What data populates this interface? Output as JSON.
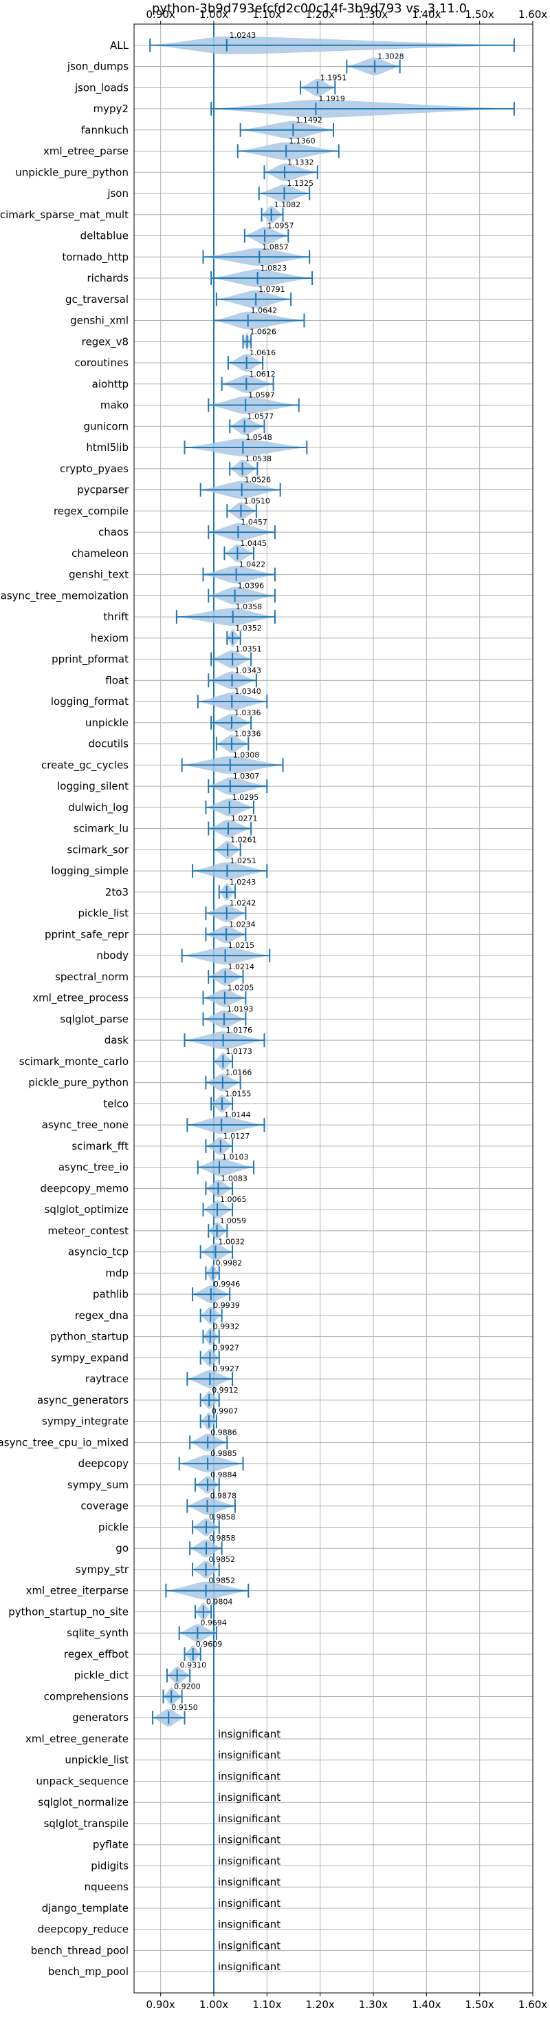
{
  "chart_data": {
    "type": "violin",
    "title": "python-3b9d793efcfd2c00c14f-3b9d793 vs. 3.11.0",
    "xlim": [
      0.85,
      1.6
    ],
    "xticks": [
      0.9,
      1.0,
      1.1,
      1.2,
      1.3,
      1.4,
      1.5,
      1.6
    ],
    "xtick_labels": [
      "0.90x",
      "1.00x",
      "1.10x",
      "1.20x",
      "1.30x",
      "1.40x",
      "1.50x",
      "1.60x"
    ],
    "reference_line": 1.0,
    "grid": true,
    "colors": {
      "line": "#1f77b4",
      "violin": "#aac8e4",
      "grid": "#b0b0b0"
    },
    "insignificant_label": "insignificant",
    "benchmarks": [
      {
        "name": "ALL",
        "mean": 1.0243,
        "min": 0.88,
        "max": 1.565,
        "label": "1.0243"
      },
      {
        "name": "json_dumps",
        "mean": 1.3028,
        "min": 1.25,
        "max": 1.35,
        "label": "1.3028"
      },
      {
        "name": "json_loads",
        "mean": 1.1951,
        "min": 1.163,
        "max": 1.228,
        "label": "1.1951"
      },
      {
        "name": "mypy2",
        "mean": 1.1919,
        "min": 0.995,
        "max": 1.565,
        "label": "1.1919"
      },
      {
        "name": "fannkuch",
        "mean": 1.1492,
        "min": 1.05,
        "max": 1.225,
        "label": "1.1492"
      },
      {
        "name": "xml_etree_parse",
        "mean": 1.136,
        "min": 1.045,
        "max": 1.235,
        "label": "1.1360"
      },
      {
        "name": "unpickle_pure_python",
        "mean": 1.1332,
        "min": 1.095,
        "max": 1.195,
        "label": "1.1332"
      },
      {
        "name": "json",
        "mean": 1.1325,
        "min": 1.085,
        "max": 1.18,
        "label": "1.1325"
      },
      {
        "name": "scimark_sparse_mat_mult",
        "mean": 1.1082,
        "min": 1.09,
        "max": 1.13,
        "label": "1.1082"
      },
      {
        "name": "deltablue",
        "mean": 1.0957,
        "min": 1.058,
        "max": 1.14,
        "label": "1.0957"
      },
      {
        "name": "tornado_http",
        "mean": 1.0857,
        "min": 0.98,
        "max": 1.18,
        "label": "1.0857"
      },
      {
        "name": "richards",
        "mean": 1.0823,
        "min": 0.995,
        "max": 1.185,
        "label": "1.0823"
      },
      {
        "name": "gc_traversal",
        "mean": 1.0791,
        "min": 1.005,
        "max": 1.145,
        "label": "1.0791"
      },
      {
        "name": "genshi_xml",
        "mean": 1.0642,
        "min": 1.0,
        "max": 1.17,
        "label": "1.0642"
      },
      {
        "name": "regex_v8",
        "mean": 1.0626,
        "min": 1.055,
        "max": 1.07,
        "label": "1.0626"
      },
      {
        "name": "coroutines",
        "mean": 1.0616,
        "min": 1.027,
        "max": 1.092,
        "label": "1.0616"
      },
      {
        "name": "aiohttp",
        "mean": 1.0612,
        "min": 1.015,
        "max": 1.112,
        "label": "1.0612"
      },
      {
        "name": "mako",
        "mean": 1.0597,
        "min": 0.99,
        "max": 1.16,
        "label": "1.0597"
      },
      {
        "name": "gunicorn",
        "mean": 1.0577,
        "min": 1.03,
        "max": 1.095,
        "label": "1.0577"
      },
      {
        "name": "html5lib",
        "mean": 1.0548,
        "min": 0.945,
        "max": 1.175,
        "label": "1.0548"
      },
      {
        "name": "crypto_pyaes",
        "mean": 1.0538,
        "min": 1.03,
        "max": 1.082,
        "label": "1.0538"
      },
      {
        "name": "pycparser",
        "mean": 1.0526,
        "min": 0.975,
        "max": 1.125,
        "label": "1.0526"
      },
      {
        "name": "regex_compile",
        "mean": 1.051,
        "min": 1.025,
        "max": 1.08,
        "label": "1.0510"
      },
      {
        "name": "chaos",
        "mean": 1.0457,
        "min": 0.99,
        "max": 1.115,
        "label": "1.0457"
      },
      {
        "name": "chameleon",
        "mean": 1.0445,
        "min": 1.02,
        "max": 1.075,
        "label": "1.0445"
      },
      {
        "name": "genshi_text",
        "mean": 1.0422,
        "min": 0.98,
        "max": 1.115,
        "label": "1.0422"
      },
      {
        "name": "async_tree_memoization",
        "mean": 1.0396,
        "min": 0.99,
        "max": 1.115,
        "label": "1.0396"
      },
      {
        "name": "thrift",
        "mean": 1.0358,
        "min": 0.93,
        "max": 1.115,
        "label": "1.0358"
      },
      {
        "name": "hexiom",
        "mean": 1.0352,
        "min": 1.025,
        "max": 1.05,
        "label": "1.0352"
      },
      {
        "name": "pprint_pformat",
        "mean": 1.0351,
        "min": 0.995,
        "max": 1.07,
        "label": "1.0351"
      },
      {
        "name": "float",
        "mean": 1.0343,
        "min": 0.99,
        "max": 1.08,
        "label": "1.0343"
      },
      {
        "name": "logging_format",
        "mean": 1.034,
        "min": 0.97,
        "max": 1.1,
        "label": "1.0340"
      },
      {
        "name": "unpickle",
        "mean": 1.0336,
        "min": 0.995,
        "max": 1.07,
        "label": "1.0336"
      },
      {
        "name": "docutils",
        "mean": 1.0336,
        "min": 1.005,
        "max": 1.065,
        "label": "1.0336"
      },
      {
        "name": "create_gc_cycles",
        "mean": 1.0308,
        "min": 0.94,
        "max": 1.13,
        "label": "1.0308"
      },
      {
        "name": "logging_silent",
        "mean": 1.0307,
        "min": 0.99,
        "max": 1.1,
        "label": "1.0307"
      },
      {
        "name": "dulwich_log",
        "mean": 1.0295,
        "min": 0.985,
        "max": 1.075,
        "label": "1.0295"
      },
      {
        "name": "scimark_lu",
        "mean": 1.0271,
        "min": 0.99,
        "max": 1.07,
        "label": "1.0271"
      },
      {
        "name": "scimark_sor",
        "mean": 1.0261,
        "min": 1.0,
        "max": 1.05,
        "label": "1.0261"
      },
      {
        "name": "logging_simple",
        "mean": 1.0251,
        "min": 0.96,
        "max": 1.1,
        "label": "1.0251"
      },
      {
        "name": "2to3",
        "mean": 1.0243,
        "min": 1.01,
        "max": 1.04,
        "label": "1.0243"
      },
      {
        "name": "pickle_list",
        "mean": 1.0242,
        "min": 0.985,
        "max": 1.06,
        "label": "1.0242"
      },
      {
        "name": "pprint_safe_repr",
        "mean": 1.0234,
        "min": 0.985,
        "max": 1.06,
        "label": "1.0234"
      },
      {
        "name": "nbody",
        "mean": 1.0215,
        "min": 0.94,
        "max": 1.105,
        "label": "1.0215"
      },
      {
        "name": "spectral_norm",
        "mean": 1.0214,
        "min": 0.99,
        "max": 1.055,
        "label": "1.0214"
      },
      {
        "name": "xml_etree_process",
        "mean": 1.0205,
        "min": 0.98,
        "max": 1.06,
        "label": "1.0205"
      },
      {
        "name": "sqlglot_parse",
        "mean": 1.0193,
        "min": 0.98,
        "max": 1.06,
        "label": "1.0193"
      },
      {
        "name": "dask",
        "mean": 1.0176,
        "min": 0.945,
        "max": 1.095,
        "label": "1.0176"
      },
      {
        "name": "scimark_monte_carlo",
        "mean": 1.0173,
        "min": 1.0,
        "max": 1.035,
        "label": "1.0173"
      },
      {
        "name": "pickle_pure_python",
        "mean": 1.0166,
        "min": 0.985,
        "max": 1.05,
        "label": "1.0166"
      },
      {
        "name": "telco",
        "mean": 1.0155,
        "min": 0.995,
        "max": 1.035,
        "label": "1.0155"
      },
      {
        "name": "async_tree_none",
        "mean": 1.0144,
        "min": 0.95,
        "max": 1.095,
        "label": "1.0144"
      },
      {
        "name": "scimark_fft",
        "mean": 1.0127,
        "min": 0.985,
        "max": 1.035,
        "label": "1.0127"
      },
      {
        "name": "async_tree_io",
        "mean": 1.0103,
        "min": 0.97,
        "max": 1.075,
        "label": "1.0103"
      },
      {
        "name": "deepcopy_memo",
        "mean": 1.0083,
        "min": 0.985,
        "max": 1.035,
        "label": "1.0083"
      },
      {
        "name": "sqlglot_optimize",
        "mean": 1.0065,
        "min": 0.98,
        "max": 1.035,
        "label": "1.0065"
      },
      {
        "name": "meteor_contest",
        "mean": 1.0059,
        "min": 0.99,
        "max": 1.025,
        "label": "1.0059"
      },
      {
        "name": "asyncio_tcp",
        "mean": 1.0032,
        "min": 0.975,
        "max": 1.035,
        "label": "1.0032"
      },
      {
        "name": "mdp",
        "mean": 0.9982,
        "min": 0.985,
        "max": 1.01,
        "label": "0.9982"
      },
      {
        "name": "pathlib",
        "mean": 0.9946,
        "min": 0.96,
        "max": 1.03,
        "label": "0.9946"
      },
      {
        "name": "regex_dna",
        "mean": 0.9939,
        "min": 0.975,
        "max": 1.015,
        "label": "0.9939"
      },
      {
        "name": "python_startup",
        "mean": 0.9932,
        "min": 0.98,
        "max": 1.01,
        "label": "0.9932"
      },
      {
        "name": "sympy_expand",
        "mean": 0.9927,
        "min": 0.975,
        "max": 1.01,
        "label": "0.9927"
      },
      {
        "name": "raytrace",
        "mean": 0.9927,
        "min": 0.95,
        "max": 1.035,
        "label": "0.9927"
      },
      {
        "name": "async_generators",
        "mean": 0.9912,
        "min": 0.975,
        "max": 1.01,
        "label": "0.9912"
      },
      {
        "name": "sympy_integrate",
        "mean": 0.9907,
        "min": 0.975,
        "max": 1.005,
        "label": "0.9907"
      },
      {
        "name": "async_tree_cpu_io_mixed",
        "mean": 0.9886,
        "min": 0.955,
        "max": 1.025,
        "label": "0.9886"
      },
      {
        "name": "deepcopy",
        "mean": 0.9885,
        "min": 0.935,
        "max": 1.055,
        "label": "0.9885"
      },
      {
        "name": "sympy_sum",
        "mean": 0.9884,
        "min": 0.965,
        "max": 1.01,
        "label": "0.9884"
      },
      {
        "name": "coverage",
        "mean": 0.9878,
        "min": 0.95,
        "max": 1.04,
        "label": "0.9878"
      },
      {
        "name": "pickle",
        "mean": 0.9858,
        "min": 0.96,
        "max": 1.01,
        "label": "0.9858"
      },
      {
        "name": "go",
        "mean": 0.9858,
        "min": 0.955,
        "max": 1.015,
        "label": "0.9858"
      },
      {
        "name": "sympy_str",
        "mean": 0.9852,
        "min": 0.96,
        "max": 1.01,
        "label": "0.9852"
      },
      {
        "name": "xml_etree_iterparse",
        "mean": 0.9852,
        "min": 0.91,
        "max": 1.065,
        "label": "0.9852"
      },
      {
        "name": "python_startup_no_site",
        "mean": 0.9804,
        "min": 0.965,
        "max": 0.995,
        "label": "0.9804"
      },
      {
        "name": "sqlite_synth",
        "mean": 0.9694,
        "min": 0.935,
        "max": 1.005,
        "label": "0.9694"
      },
      {
        "name": "regex_effbot",
        "mean": 0.9609,
        "min": 0.945,
        "max": 0.975,
        "label": "0.9609"
      },
      {
        "name": "pickle_dict",
        "mean": 0.931,
        "min": 0.912,
        "max": 0.955,
        "label": "0.9310"
      },
      {
        "name": "comprehensions",
        "mean": 0.92,
        "min": 0.905,
        "max": 0.94,
        "label": "0.9200"
      },
      {
        "name": "generators",
        "mean": 0.915,
        "min": 0.885,
        "max": 0.945,
        "label": "0.9150"
      },
      {
        "name": "xml_etree_generate",
        "insignificant": true
      },
      {
        "name": "unpickle_list",
        "insignificant": true
      },
      {
        "name": "unpack_sequence",
        "insignificant": true
      },
      {
        "name": "sqlglot_normalize",
        "insignificant": true
      },
      {
        "name": "sqlglot_transpile",
        "insignificant": true
      },
      {
        "name": "pyflate",
        "insignificant": true
      },
      {
        "name": "pidigits",
        "insignificant": true
      },
      {
        "name": "nqueens",
        "insignificant": true
      },
      {
        "name": "django_template",
        "insignificant": true
      },
      {
        "name": "deepcopy_reduce",
        "insignificant": true
      },
      {
        "name": "bench_thread_pool",
        "insignificant": true
      },
      {
        "name": "bench_mp_pool",
        "insignificant": true
      }
    ]
  }
}
